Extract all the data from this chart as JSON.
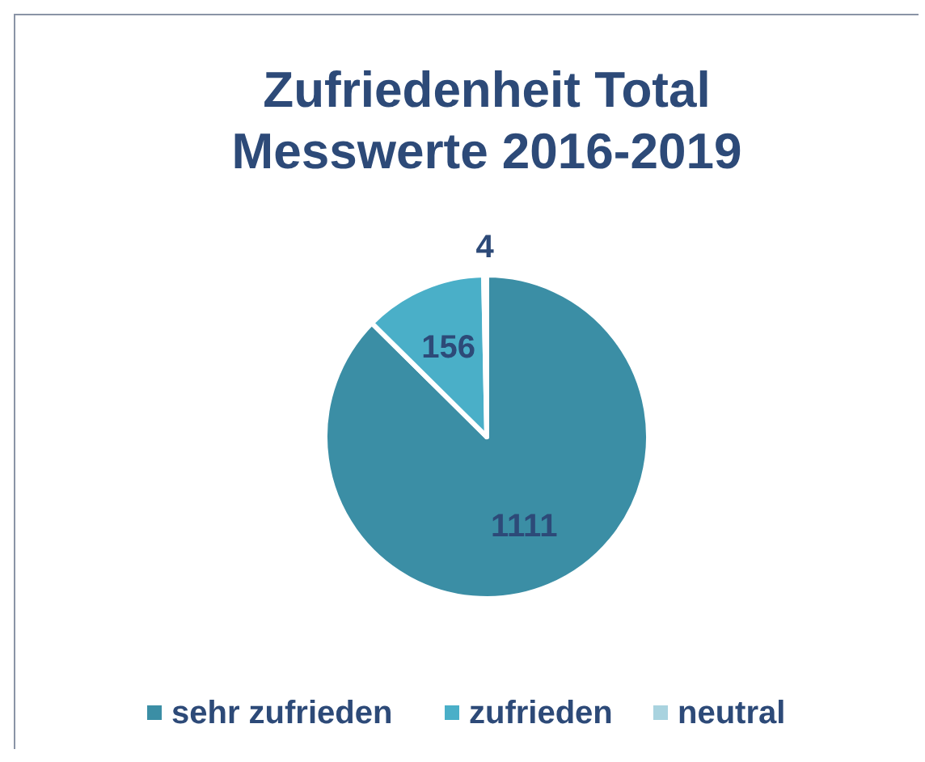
{
  "chart_data": {
    "type": "pie",
    "title": "Zufriedenheit Total\nMesswerte 2016-2019",
    "categories": [
      "sehr zufrieden",
      "zufrieden",
      "neutral"
    ],
    "values": [
      1111,
      156,
      4
    ],
    "colors": [
      "#3b8ea5",
      "#4aafc8",
      "#a9d3df"
    ],
    "data_labels": true,
    "legend": "bottom"
  }
}
